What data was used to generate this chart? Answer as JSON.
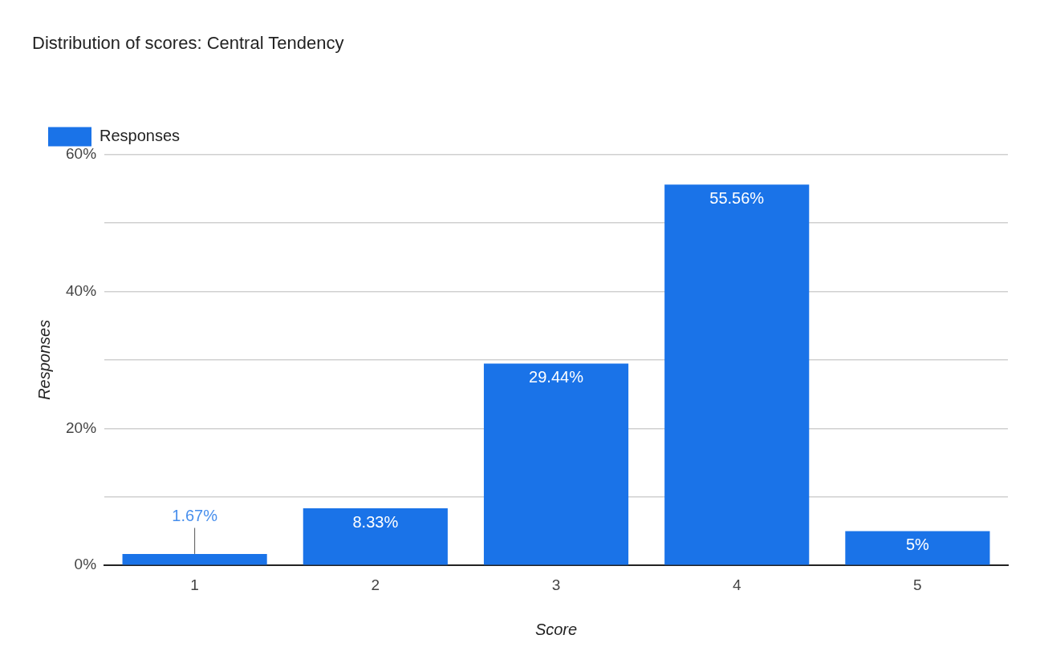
{
  "chart_data": {
    "type": "bar",
    "title": "Distribution of scores: Central Tendency",
    "xlabel": "Score",
    "ylabel": "Responses",
    "categories": [
      "1",
      "2",
      "3",
      "4",
      "5"
    ],
    "series": [
      {
        "name": "Responses",
        "color": "#1a73e8",
        "values": [
          1.67,
          8.33,
          29.44,
          55.56,
          5
        ],
        "value_labels": [
          "1.67%",
          "8.33%",
          "29.44%",
          "55.56%",
          "5%"
        ]
      }
    ],
    "ylim": [
      0,
      60
    ],
    "yticks": [
      {
        "value": 0,
        "label": "0%"
      },
      {
        "value": 10,
        "label": null
      },
      {
        "value": 20,
        "label": "20%"
      },
      {
        "value": 30,
        "label": null
      },
      {
        "value": 40,
        "label": "40%"
      },
      {
        "value": 50,
        "label": null
      },
      {
        "value": 60,
        "label": "60%"
      }
    ],
    "grid": "y",
    "legend": "top left"
  }
}
